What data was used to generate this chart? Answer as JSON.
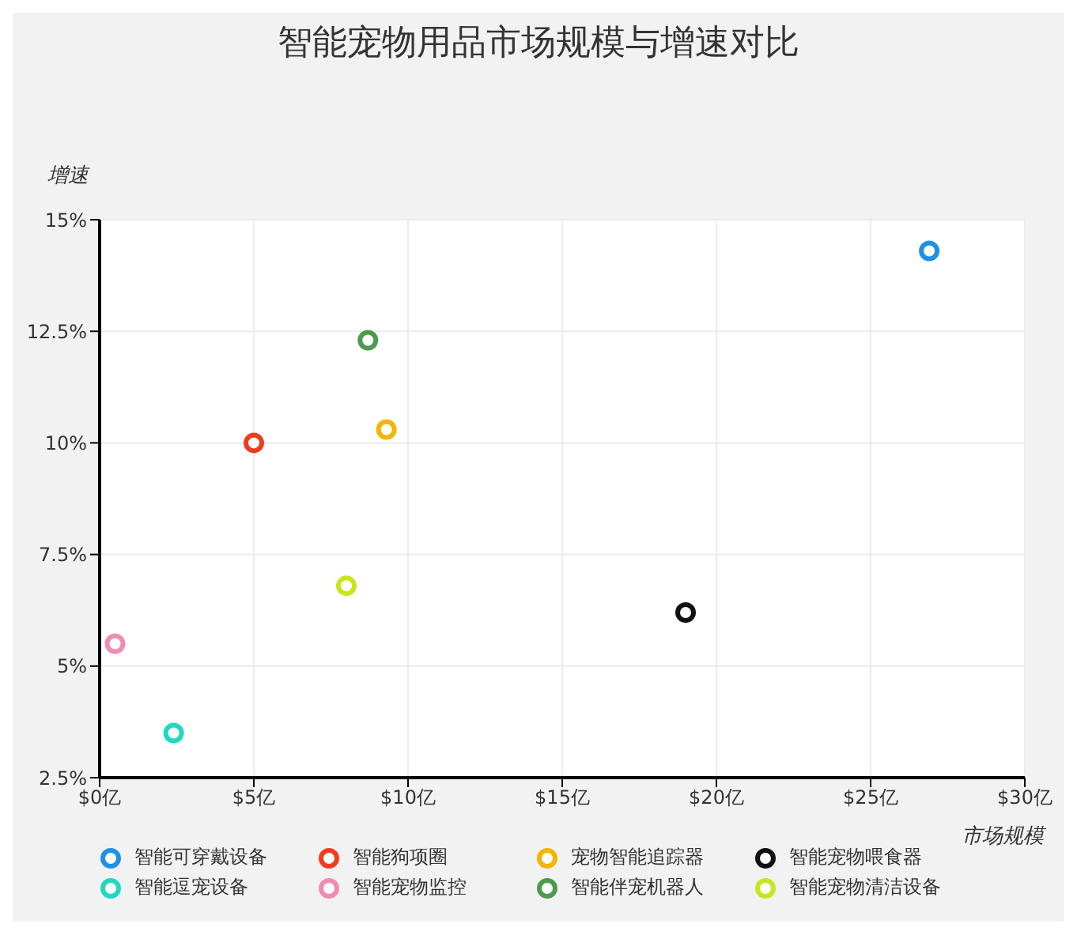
{
  "chart_data": {
    "type": "scatter",
    "title": "智能宠物用品市场规模与增速对比",
    "xlabel": "市场规模",
    "ylabel": "增速",
    "xlim": [
      0,
      30
    ],
    "xticks": [
      {
        "value": 0,
        "label": "$0亿"
      },
      {
        "value": 5,
        "label": "$5亿"
      },
      {
        "value": 10,
        "label": "$10亿"
      },
      {
        "value": 15,
        "label": "$15亿"
      },
      {
        "value": 20,
        "label": "$20亿"
      },
      {
        "value": 25,
        "label": "$25亿"
      },
      {
        "value": 30,
        "label": "$30亿"
      }
    ],
    "ylim": [
      2.5,
      15
    ],
    "yticks": [
      {
        "value": 2.5,
        "label": "2.5%"
      },
      {
        "value": 5,
        "label": "5%"
      },
      {
        "value": 7.5,
        "label": "7.5%"
      },
      {
        "value": 10,
        "label": "10%"
      },
      {
        "value": 12.5,
        "label": "12.5%"
      },
      {
        "value": 15,
        "label": "15%"
      }
    ],
    "grid": true,
    "legend": "bottom",
    "marker": "circle",
    "series": [
      {
        "name": "智能可穿戴设备",
        "color": "#1e90e8",
        "x": [
          26.9
        ],
        "values": [
          14.3
        ]
      },
      {
        "name": "智能狗项圈",
        "color": "#f03c1e",
        "x": [
          5.0
        ],
        "values": [
          10.0
        ]
      },
      {
        "name": "宠物智能追踪器",
        "color": "#f5b400",
        "x": [
          9.3
        ],
        "values": [
          10.3
        ]
      },
      {
        "name": "智能宠物喂食器",
        "color": "#111111",
        "x": [
          19.0
        ],
        "values": [
          6.2
        ]
      },
      {
        "name": "智能逗宠设备",
        "color": "#1ed9c0",
        "x": [
          2.4
        ],
        "values": [
          3.5
        ]
      },
      {
        "name": "智能宠物监控",
        "color": "#f08cb4",
        "x": [
          0.5
        ],
        "values": [
          5.5
        ]
      },
      {
        "name": "智能伴宠机器人",
        "color": "#4c9a4c",
        "x": [
          8.7
        ],
        "values": [
          12.3
        ]
      },
      {
        "name": "智能宠物清洁设备",
        "color": "#c8e61e",
        "x": [
          8.0
        ],
        "values": [
          6.8
        ]
      }
    ]
  }
}
